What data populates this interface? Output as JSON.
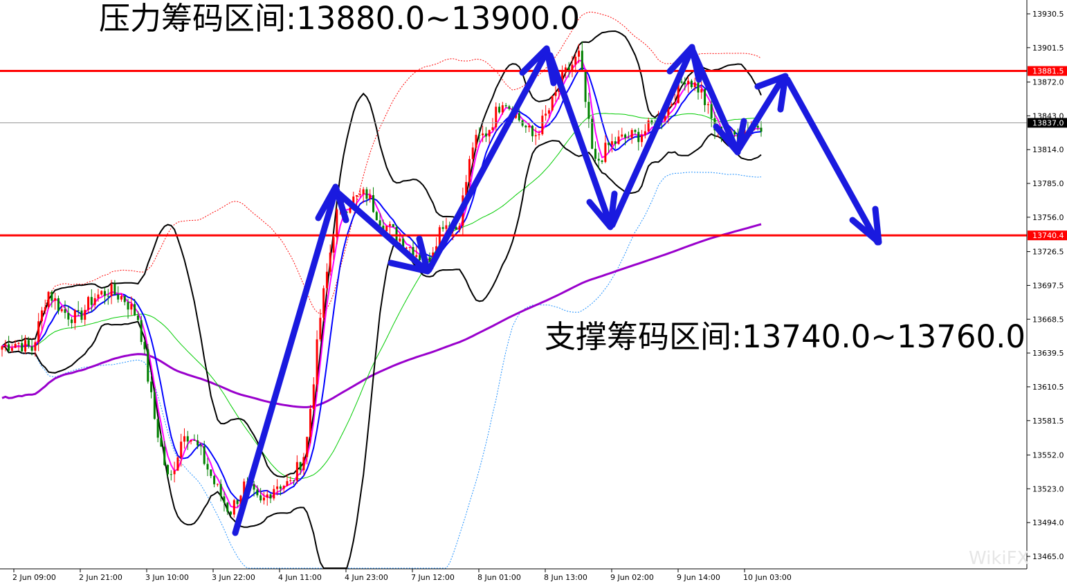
{
  "annotations": {
    "resistance": "压力筹码区间:13880.0~13900.0",
    "support": "支撑筹码区间:13740.0~13760.0"
  },
  "chart_data": {
    "type": "candlestick",
    "title": "",
    "y_axis": {
      "position": "right",
      "range": [
        13455,
        13945
      ],
      "ticks": [
        "13930.5",
        "13901.5",
        "13872.0",
        "13843.0",
        "13814.0",
        "13785.0",
        "13756.0",
        "13726.5",
        "13697.5",
        "13668.5",
        "13639.5",
        "13610.5",
        "13581.5",
        "13552.0",
        "13523.0",
        "13494.0",
        "13465.0"
      ]
    },
    "x_axis": {
      "ticks": [
        "2 Jun 09:00",
        "2 Jun 21:00",
        "3 Jun 10:00",
        "3 Jun 22:00",
        "4 Jun 11:00",
        "4 Jun 23:00",
        "7 Jun 12:00",
        "8 Jun 01:00",
        "8 Jun 13:00",
        "9 Jun 02:00",
        "9 Jun 14:00",
        "10 Jun 03:00"
      ]
    },
    "close_path": [
      13645.5,
      13648.5,
      13642.5,
      13693,
      13675,
      13669,
      13687,
      13693,
      13687,
      13669,
      13586,
      13527,
      13574,
      13556,
      13527,
      13503,
      13527,
      13509,
      13527,
      13527,
      13556,
      13675,
      13758,
      13770,
      13776,
      13752,
      13740,
      13729,
      13717,
      13752,
      13746,
      13818,
      13830,
      13859,
      13841,
      13824,
      13847,
      13877,
      13895,
      13800,
      13818,
      13824,
      13827,
      13836,
      13853,
      13877,
      13865,
      13830,
      13824,
      13832,
      13836
    ],
    "horizontal_lines": [
      {
        "price": 13881.5,
        "label": "13881.5",
        "color": "#ff0000"
      },
      {
        "price": 13740.4,
        "label": "13740.4",
        "color": "#ff0000"
      }
    ],
    "current_price": {
      "price": 13837.0,
      "label": "13837.0"
    },
    "colors": {
      "up": "#ff0000",
      "down": "#008000",
      "ma_fast": "#ff00ff",
      "ma_mid": "#0000ff",
      "ma_slow": "#00cc00",
      "ma_long": "#9900cc",
      "bands": "#000000",
      "arrows": "#1a1adf"
    }
  },
  "watermark": "WikiFX"
}
